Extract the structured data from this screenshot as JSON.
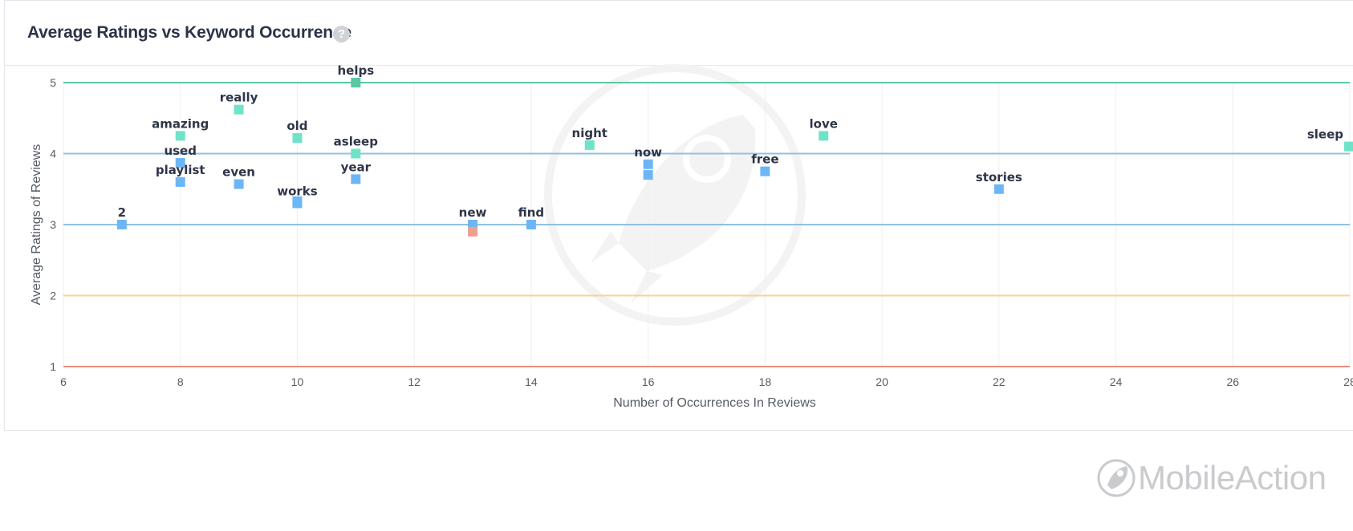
{
  "widget": {
    "title": "Average Ratings vs Keyword Occurrence",
    "help_icon": "question-circle-icon"
  },
  "brand": {
    "name": "MobileAction",
    "icon": "rocket-logo-icon"
  },
  "chart_data": {
    "type": "scatter",
    "xlabel": "Number of Occurrences In Reviews",
    "ylabel": "Average Ratings of Reviews",
    "xlim": [
      6,
      28
    ],
    "ylim": [
      1,
      5
    ],
    "xticks": [
      6,
      8,
      10,
      12,
      14,
      16,
      18,
      20,
      22,
      24,
      26,
      28
    ],
    "yticks": [
      1,
      2,
      3,
      4,
      5
    ],
    "grid": true,
    "legend": "none",
    "reference_lines": [
      {
        "y": 5,
        "color": "#5cc7a4"
      },
      {
        "y": 4,
        "color": "#8fc0e3"
      },
      {
        "y": 3,
        "color": "#8fc0e3"
      },
      {
        "y": 2,
        "color": "#f8d29a"
      },
      {
        "y": 1,
        "color": "#ea8d7c"
      }
    ],
    "points": [
      {
        "label": "2",
        "x": 7,
        "y": 3.0,
        "color": "#6db6f5"
      },
      {
        "label": "amazing",
        "x": 8,
        "y": 4.25,
        "color": "#6fe3c6"
      },
      {
        "label": "used",
        "x": 8,
        "y": 3.87,
        "color": "#6db6f5"
      },
      {
        "label": "playlist",
        "x": 8,
        "y": 3.6,
        "color": "#6db6f5"
      },
      {
        "label": "really",
        "x": 9,
        "y": 4.62,
        "color": "#6fe3c6"
      },
      {
        "label": "even",
        "x": 9,
        "y": 3.57,
        "color": "#6db6f5"
      },
      {
        "label": "old",
        "x": 10,
        "y": 4.22,
        "color": "#6fe3c6"
      },
      {
        "label": "works",
        "x": 10,
        "y": 3.3,
        "color": "#6db6f5"
      },
      {
        "label": "",
        "x": 10,
        "y": 3.33,
        "color": "#6db6f5"
      },
      {
        "label": "helps",
        "x": 11,
        "y": 5.0,
        "color": "#5cc7a4"
      },
      {
        "label": "asleep",
        "x": 11,
        "y": 4.0,
        "color": "#6fe3c6"
      },
      {
        "label": "year",
        "x": 11,
        "y": 3.64,
        "color": "#6db6f5"
      },
      {
        "label": "new",
        "x": 13,
        "y": 3.0,
        "color": "#6db6f5"
      },
      {
        "label": "",
        "x": 13,
        "y": 2.9,
        "color": "#f0a08f"
      },
      {
        "label": "find",
        "x": 14,
        "y": 3.0,
        "color": "#6db6f5"
      },
      {
        "label": "night",
        "x": 15,
        "y": 4.12,
        "color": "#6fe3c6"
      },
      {
        "label": "now",
        "x": 16,
        "y": 3.85,
        "color": "#6db6f5"
      },
      {
        "label": "",
        "x": 16,
        "y": 3.7,
        "color": "#6db6f5"
      },
      {
        "label": "free",
        "x": 18,
        "y": 3.75,
        "color": "#6db6f5"
      },
      {
        "label": "love",
        "x": 19,
        "y": 4.25,
        "color": "#6fe3c6"
      },
      {
        "label": "stories",
        "x": 22,
        "y": 3.5,
        "color": "#6db6f5"
      },
      {
        "label": "sleep",
        "x": 28,
        "y": 4.1,
        "color": "#6fe3c6"
      }
    ]
  }
}
